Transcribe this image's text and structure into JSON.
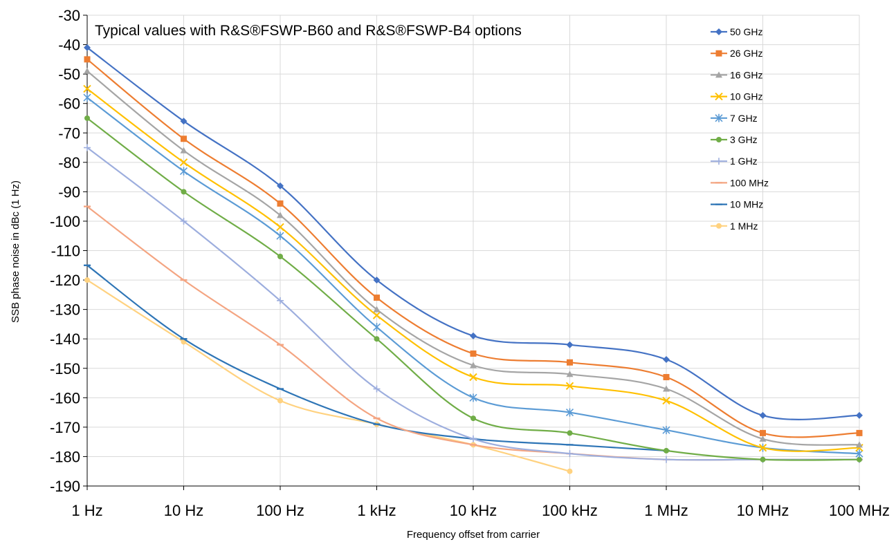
{
  "chart_data": {
    "type": "line",
    "title": "Typical values with R&S®FSWP-B60 and R&S®FSWP-B4 options",
    "xlabel": "Frequency offset from carrier",
    "ylabel": "SSB phase noise in dBc (1 Hz)",
    "x_scale": "log",
    "categories": [
      "1 Hz",
      "10 Hz",
      "100 Hz",
      "1 kHz",
      "10 kHz",
      "100 kHz",
      "1 MHz",
      "10 MHz",
      "100 MHz"
    ],
    "x_values_hz": [
      1,
      10,
      100,
      1000,
      10000,
      100000,
      1000000,
      10000000,
      100000000
    ],
    "ylim": [
      -190,
      -30
    ],
    "yticks": [
      -30,
      -40,
      -50,
      -60,
      -70,
      -80,
      -90,
      -100,
      -110,
      -120,
      -130,
      -140,
      -150,
      -160,
      -170,
      -180,
      -190
    ],
    "grid": true,
    "legend_position": "top-right",
    "series": [
      {
        "name": "50 GHz",
        "color": "#4472C4",
        "marker": "diamond",
        "values": [
          -41,
          -66,
          -88,
          -120,
          -139,
          -142,
          -147,
          -166,
          -166
        ]
      },
      {
        "name": "26 GHz",
        "color": "#ED7D31",
        "marker": "square",
        "values": [
          -45,
          -72,
          -94,
          -126,
          -145,
          -148,
          -153,
          -172,
          -172
        ]
      },
      {
        "name": "16 GHz",
        "color": "#A5A5A5",
        "marker": "triangle",
        "values": [
          -49,
          -76,
          -98,
          -130,
          -149,
          -152,
          -157,
          -174,
          -176
        ]
      },
      {
        "name": "10 GHz",
        "color": "#FFC000",
        "marker": "x",
        "values": [
          -55,
          -80,
          -102,
          -132,
          -153,
          -156,
          -161,
          -177,
          -177
        ]
      },
      {
        "name": "7 GHz",
        "color": "#5B9BD5",
        "marker": "asterisk",
        "values": [
          -58,
          -83,
          -105,
          -136,
          -160,
          -165,
          -171,
          -177,
          -179
        ]
      },
      {
        "name": "3 GHz",
        "color": "#70AD47",
        "marker": "circle",
        "values": [
          -65,
          -90,
          -112,
          -140,
          -167,
          -172,
          -178,
          -181,
          -181
        ]
      },
      {
        "name": "1 GHz",
        "color": "#9DAEDE",
        "marker": "plus",
        "values": [
          -75,
          -100,
          -127,
          -157,
          -174,
          -179,
          -181,
          -181,
          -181
        ]
      },
      {
        "name": "100 MHz",
        "color": "#F4A582",
        "marker": "dash",
        "values": [
          -95,
          -120,
          -142,
          -167,
          -176,
          -179,
          -181,
          -181,
          -181
        ]
      },
      {
        "name": "10 MHz",
        "color": "#2E75B6",
        "marker": "dash",
        "values": [
          -115,
          -140,
          -157,
          -169,
          -174,
          -176,
          -178,
          null,
          null
        ]
      },
      {
        "name": "1 MHz",
        "color": "#FFD280",
        "marker": "circle",
        "values": [
          -120,
          -141,
          -161,
          -169,
          -176,
          -185,
          null,
          null,
          null
        ]
      }
    ]
  }
}
